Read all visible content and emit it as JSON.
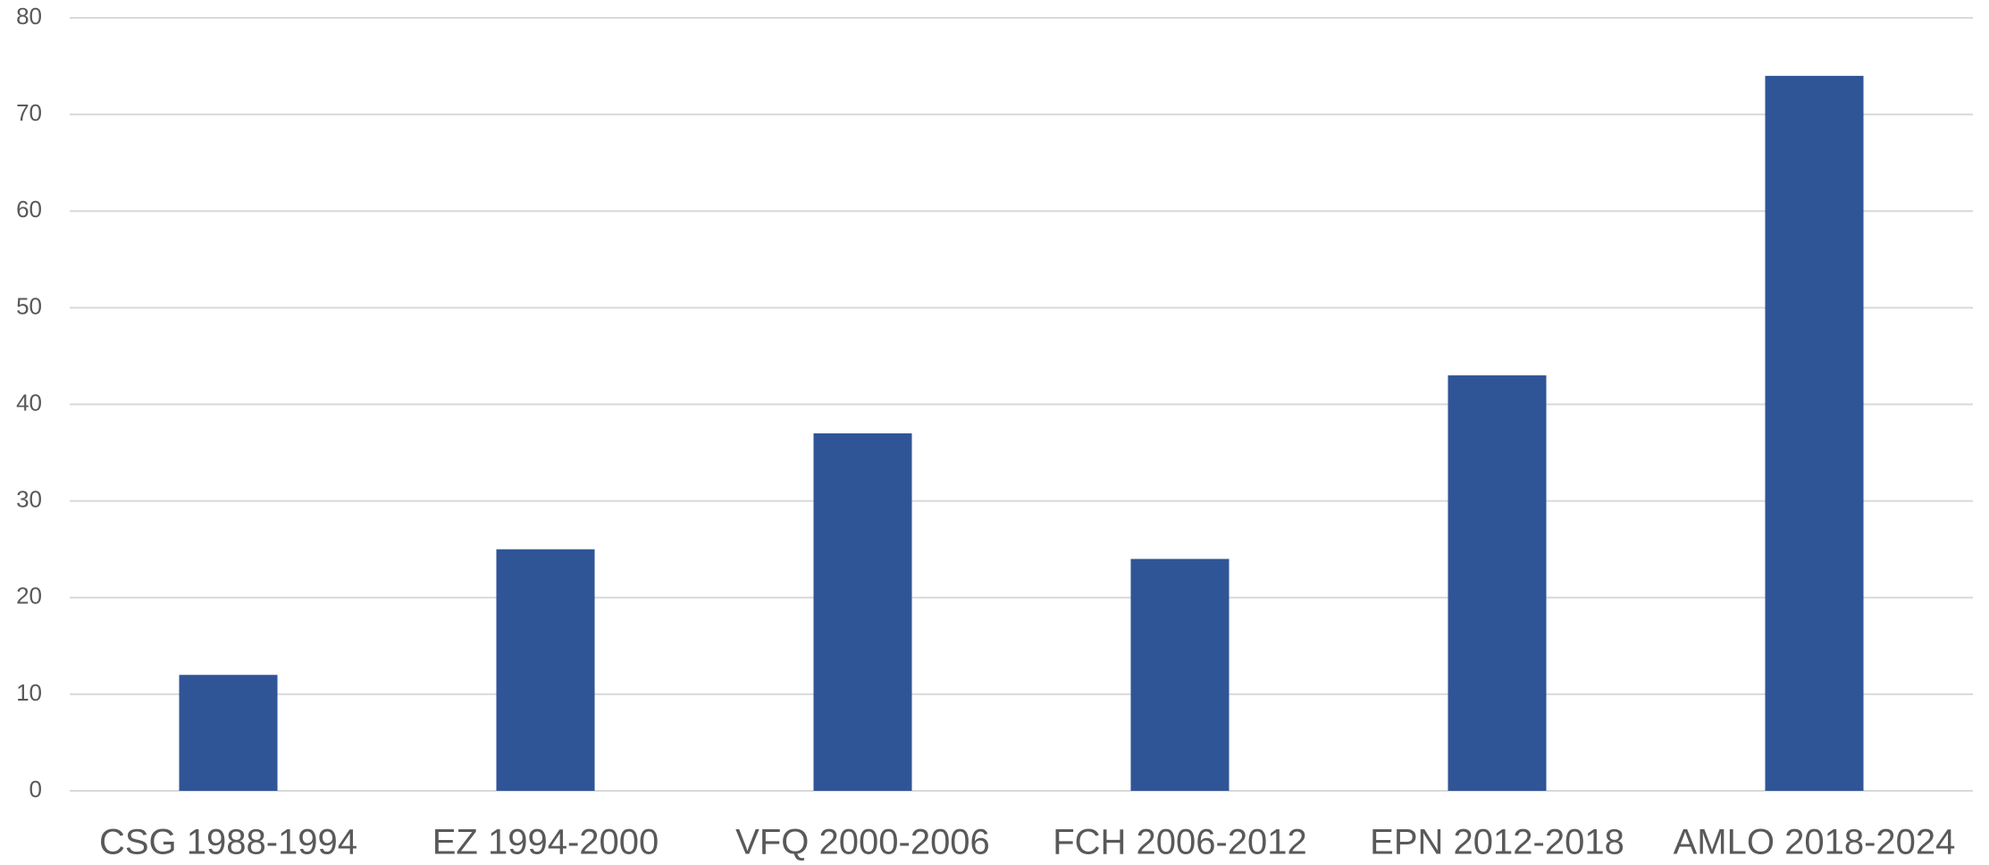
{
  "chart_data": {
    "type": "bar",
    "categories": [
      "CSG 1988-1994",
      "EZ 1994-2000",
      "VFQ 2000-2006",
      "FCH 2006-2012",
      "EPN 2012-2018",
      "AMLO 2018-2024"
    ],
    "values": [
      12,
      25,
      37,
      24,
      43,
      74
    ],
    "color": "#2f5597",
    "ylim": [
      0,
      80
    ],
    "yticks": [
      0,
      10,
      20,
      30,
      40,
      50,
      60,
      70,
      80
    ],
    "grid": true
  }
}
